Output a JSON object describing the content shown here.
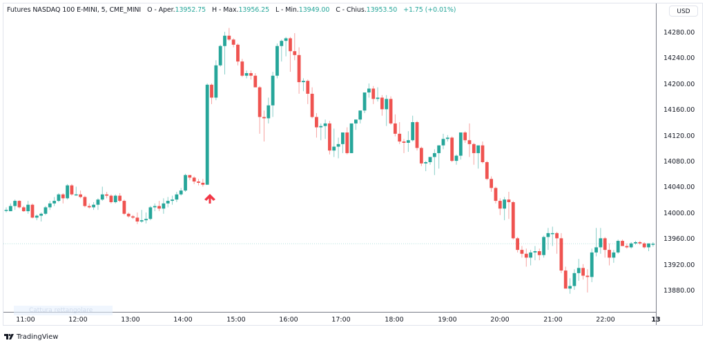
{
  "header": {
    "symbol": "Futures NASDAQ 100 E-MINI, 5, CME_MINI",
    "o_label": "O - Aper.",
    "o_value": "13952.75",
    "h_label": "H - Max.",
    "h_value": "13956.25",
    "l_label": "L - Min.",
    "l_value": "13949.00",
    "c_label": "C - Chius.",
    "c_value": "13953.50",
    "change": "+1.75 (+0.01%)"
  },
  "price_axis": {
    "currency_button": "USD",
    "ticks": [
      "14280.00",
      "14240.00",
      "14200.00",
      "14160.00",
      "14120.00",
      "14080.00",
      "14040.00",
      "14000.00",
      "13960.00",
      "13920.00",
      "13880.00"
    ]
  },
  "time_axis": {
    "ticks": [
      "11:00",
      "12:00",
      "13:00",
      "14:00",
      "15:00",
      "16:00",
      "17:00",
      "18:00",
      "19:00",
      "20:00",
      "21:00",
      "22:00",
      "13"
    ]
  },
  "overlay_hint": "Cattura rettangolare",
  "branding": {
    "logo_text": "TradingView"
  },
  "colors": {
    "up": "#26a69a",
    "down": "#ef5350",
    "arrow": "#f23645",
    "text_value": "#26a69a"
  },
  "chart_data": {
    "type": "candlestick",
    "title": "Futures NASDAQ 100 E-MINI, 5, CME_MINI",
    "xlabel": "",
    "ylabel": "USD",
    "ylim": [
      13860,
      14295
    ],
    "yticks": [
      14280,
      14240,
      14200,
      14160,
      14120,
      14080,
      14040,
      14000,
      13960,
      13920,
      13880
    ],
    "xticks": [
      "11:00",
      "12:00",
      "13:00",
      "14:00",
      "15:00",
      "16:00",
      "17:00",
      "18:00",
      "19:00",
      "20:00",
      "21:00",
      "22:00",
      "13"
    ],
    "interval": "5m",
    "last_price": 13953.5,
    "annotation": {
      "type": "up-arrow",
      "at_time": "14:30",
      "color": "#f23645"
    },
    "candles": [
      [
        14006,
        14010,
        14002,
        14006
      ],
      [
        14004,
        14016,
        14004,
        14012
      ],
      [
        14012,
        14022,
        14006,
        14020
      ],
      [
        14020,
        14021,
        14008,
        14010
      ],
      [
        14010,
        14012,
        14003,
        14004
      ],
      [
        14004,
        14020,
        14000,
        14014
      ],
      [
        14014,
        14016,
        13993,
        13994
      ],
      [
        13994,
        13999,
        13990,
        13997
      ],
      [
        13997,
        14002,
        13988,
        14000
      ],
      [
        14000,
        14012,
        13998,
        14010
      ],
      [
        14010,
        14020,
        14006,
        14016
      ],
      [
        14016,
        14026,
        14012,
        14020
      ],
      [
        14020,
        14032,
        14018,
        14030
      ],
      [
        14030,
        14032,
        14016,
        14024
      ],
      [
        14024,
        14046,
        14022,
        14044
      ],
      [
        14044,
        14046,
        14028,
        14030
      ],
      [
        14030,
        14042,
        14028,
        14030
      ],
      [
        14030,
        14036,
        14024,
        14026
      ],
      [
        14026,
        14028,
        14010,
        14012
      ],
      [
        14012,
        14016,
        14008,
        14010
      ],
      [
        14010,
        14018,
        14006,
        14014
      ],
      [
        14014,
        14024,
        14006,
        14022
      ],
      [
        14022,
        14042,
        14020,
        14030
      ],
      [
        14030,
        14034,
        14024,
        14028
      ],
      [
        14028,
        14030,
        14016,
        14018
      ],
      [
        14018,
        14030,
        14016,
        14028
      ],
      [
        14028,
        14032,
        14018,
        14020
      ],
      [
        14020,
        14022,
        13998,
        14000
      ],
      [
        14000,
        14002,
        13994,
        13996
      ],
      [
        13996,
        13998,
        13992,
        13994
      ],
      [
        13994,
        14002,
        13984,
        13988
      ],
      [
        13988,
        14006,
        13986,
        13990
      ],
      [
        13990,
        14002,
        13985,
        13992
      ],
      [
        13992,
        14012,
        13990,
        14010
      ],
      [
        14010,
        14016,
        14004,
        14012
      ],
      [
        14012,
        14020,
        14004,
        14008
      ],
      [
        14008,
        14024,
        14000,
        14016
      ],
      [
        14016,
        14026,
        14010,
        14020
      ],
      [
        14020,
        14028,
        14014,
        14022
      ],
      [
        14022,
        14034,
        14018,
        14030
      ],
      [
        14030,
        14040,
        14028,
        14036
      ],
      [
        14036,
        14062,
        14034,
        14060
      ],
      [
        14060,
        14060,
        14052,
        14056
      ],
      [
        14056,
        14058,
        14046,
        14050
      ],
      [
        14050,
        14054,
        14044,
        14048
      ],
      [
        14048,
        14054,
        14042,
        14045
      ],
      [
        14045,
        14202,
        14045,
        14200
      ],
      [
        14200,
        14202,
        14170,
        14180
      ],
      [
        14180,
        14238,
        14176,
        14230
      ],
      [
        14230,
        14262,
        14228,
        14260
      ],
      [
        14260,
        14282,
        14216,
        14276
      ],
      [
        14276,
        14288,
        14268,
        14270
      ],
      [
        14270,
        14272,
        14258,
        14262
      ],
      [
        14262,
        14264,
        14230,
        14236
      ],
      [
        14236,
        14240,
        14212,
        14214
      ],
      [
        14214,
        14222,
        14210,
        14218
      ],
      [
        14218,
        14222,
        14208,
        14214
      ],
      [
        14214,
        14218,
        14196,
        14196
      ],
      [
        14196,
        14198,
        14124,
        14150
      ],
      [
        14150,
        14160,
        14112,
        14148
      ],
      [
        14148,
        14180,
        14140,
        14168
      ],
      [
        14168,
        14220,
        14150,
        14214
      ],
      [
        14214,
        14264,
        14210,
        14260
      ],
      [
        14260,
        14270,
        14236,
        14268
      ],
      [
        14268,
        14274,
        14244,
        14272
      ],
      [
        14272,
        14274,
        14220,
        14252
      ],
      [
        14252,
        14280,
        14238,
        14246
      ],
      [
        14246,
        14258,
        14186,
        14204
      ],
      [
        14204,
        14210,
        14190,
        14206
      ],
      [
        14206,
        14208,
        14170,
        14186
      ],
      [
        14186,
        14196,
        14148,
        14150
      ],
      [
        14150,
        14156,
        14118,
        14134
      ],
      [
        14134,
        14140,
        14114,
        14136
      ],
      [
        14136,
        14146,
        14116,
        14140
      ],
      [
        14140,
        14144,
        14092,
        14098
      ],
      [
        14098,
        14132,
        14088,
        14104
      ],
      [
        14104,
        14118,
        14086,
        14108
      ],
      [
        14108,
        14124,
        14094,
        14126
      ],
      [
        14126,
        14134,
        14092,
        14094
      ],
      [
        14094,
        14138,
        14094,
        14140
      ],
      [
        14140,
        14146,
        14130,
        14146
      ],
      [
        14146,
        14160,
        14140,
        14160
      ],
      [
        14160,
        14184,
        14156,
        14188
      ],
      [
        14188,
        14202,
        14180,
        14194
      ],
      [
        14194,
        14198,
        14170,
        14178
      ],
      [
        14178,
        14196,
        14174,
        14180
      ],
      [
        14180,
        14184,
        14152,
        14162
      ],
      [
        14162,
        14184,
        14136,
        14178
      ],
      [
        14178,
        14182,
        14138,
        14140
      ],
      [
        14140,
        14154,
        14120,
        14124
      ],
      [
        14124,
        14142,
        14108,
        14112
      ],
      [
        14112,
        14116,
        14094,
        14110
      ],
      [
        14110,
        14128,
        14096,
        14114
      ],
      [
        14114,
        14152,
        14112,
        14142
      ],
      [
        14142,
        14144,
        14098,
        14102
      ],
      [
        14102,
        14104,
        14074,
        14078
      ],
      [
        14078,
        14082,
        14066,
        14080
      ],
      [
        14080,
        14084,
        14076,
        14088
      ],
      [
        14088,
        14100,
        14060,
        14094
      ],
      [
        14094,
        14106,
        14070,
        14106
      ],
      [
        14106,
        14124,
        14100,
        14116
      ],
      [
        14116,
        14122,
        14112,
        14118
      ],
      [
        14118,
        14120,
        14080,
        14082
      ],
      [
        14082,
        14092,
        14076,
        14090
      ],
      [
        14090,
        14124,
        14084,
        14126
      ],
      [
        14126,
        14128,
        14110,
        14114
      ],
      [
        14114,
        14140,
        14088,
        14108
      ],
      [
        14108,
        14110,
        14076,
        14094
      ],
      [
        14094,
        14102,
        14070,
        14106
      ],
      [
        14106,
        14112,
        14078,
        14080
      ],
      [
        14080,
        14082,
        14052,
        14054
      ],
      [
        14054,
        14058,
        14034,
        14040
      ],
      [
        14040,
        14042,
        14016,
        14020
      ],
      [
        14020,
        14024,
        13998,
        14008
      ],
      [
        14008,
        14026,
        13990,
        14022
      ],
      [
        14022,
        14034,
        13992,
        14018
      ],
      [
        14018,
        14020,
        13960,
        13962
      ],
      [
        13962,
        13964,
        13940,
        13944
      ],
      [
        13944,
        13950,
        13932,
        13938
      ],
      [
        13938,
        13946,
        13918,
        13932
      ],
      [
        13932,
        13944,
        13920,
        13940
      ],
      [
        13940,
        13950,
        13928,
        13942
      ],
      [
        13942,
        13946,
        13928,
        13936
      ],
      [
        13936,
        13966,
        13932,
        13964
      ],
      [
        13964,
        13978,
        13944,
        13970
      ],
      [
        13970,
        13980,
        13950,
        13970
      ],
      [
        13970,
        13972,
        13938,
        13962
      ],
      [
        13962,
        13970,
        13908,
        13912
      ],
      [
        13912,
        13918,
        13888,
        13884
      ],
      [
        13884,
        13900,
        13876,
        13888
      ],
      [
        13888,
        13914,
        13882,
        13908
      ],
      [
        13908,
        13930,
        13896,
        13916
      ],
      [
        13916,
        13922,
        13898,
        13904
      ],
      [
        13904,
        13914,
        13878,
        13902
      ],
      [
        13902,
        13946,
        13894,
        13940
      ],
      [
        13940,
        13978,
        13934,
        13948
      ],
      [
        13948,
        13978,
        13938,
        13962
      ],
      [
        13962,
        13964,
        13932,
        13944
      ],
      [
        13944,
        13954,
        13920,
        13932
      ],
      [
        13932,
        13944,
        13924,
        13940
      ],
      [
        13940,
        13960,
        13938,
        13958
      ],
      [
        13958,
        13960,
        13950,
        13950
      ],
      [
        13950,
        13954,
        13946,
        13948
      ],
      [
        13948,
        13956,
        13946,
        13954
      ],
      [
        13954,
        13958,
        13952,
        13956
      ],
      [
        13956,
        13958,
        13952,
        13954
      ],
      [
        13954,
        13956,
        13946,
        13948
      ],
      [
        13948,
        13954,
        13942,
        13954
      ],
      [
        13952,
        13956,
        13949,
        13953.5
      ]
    ]
  }
}
